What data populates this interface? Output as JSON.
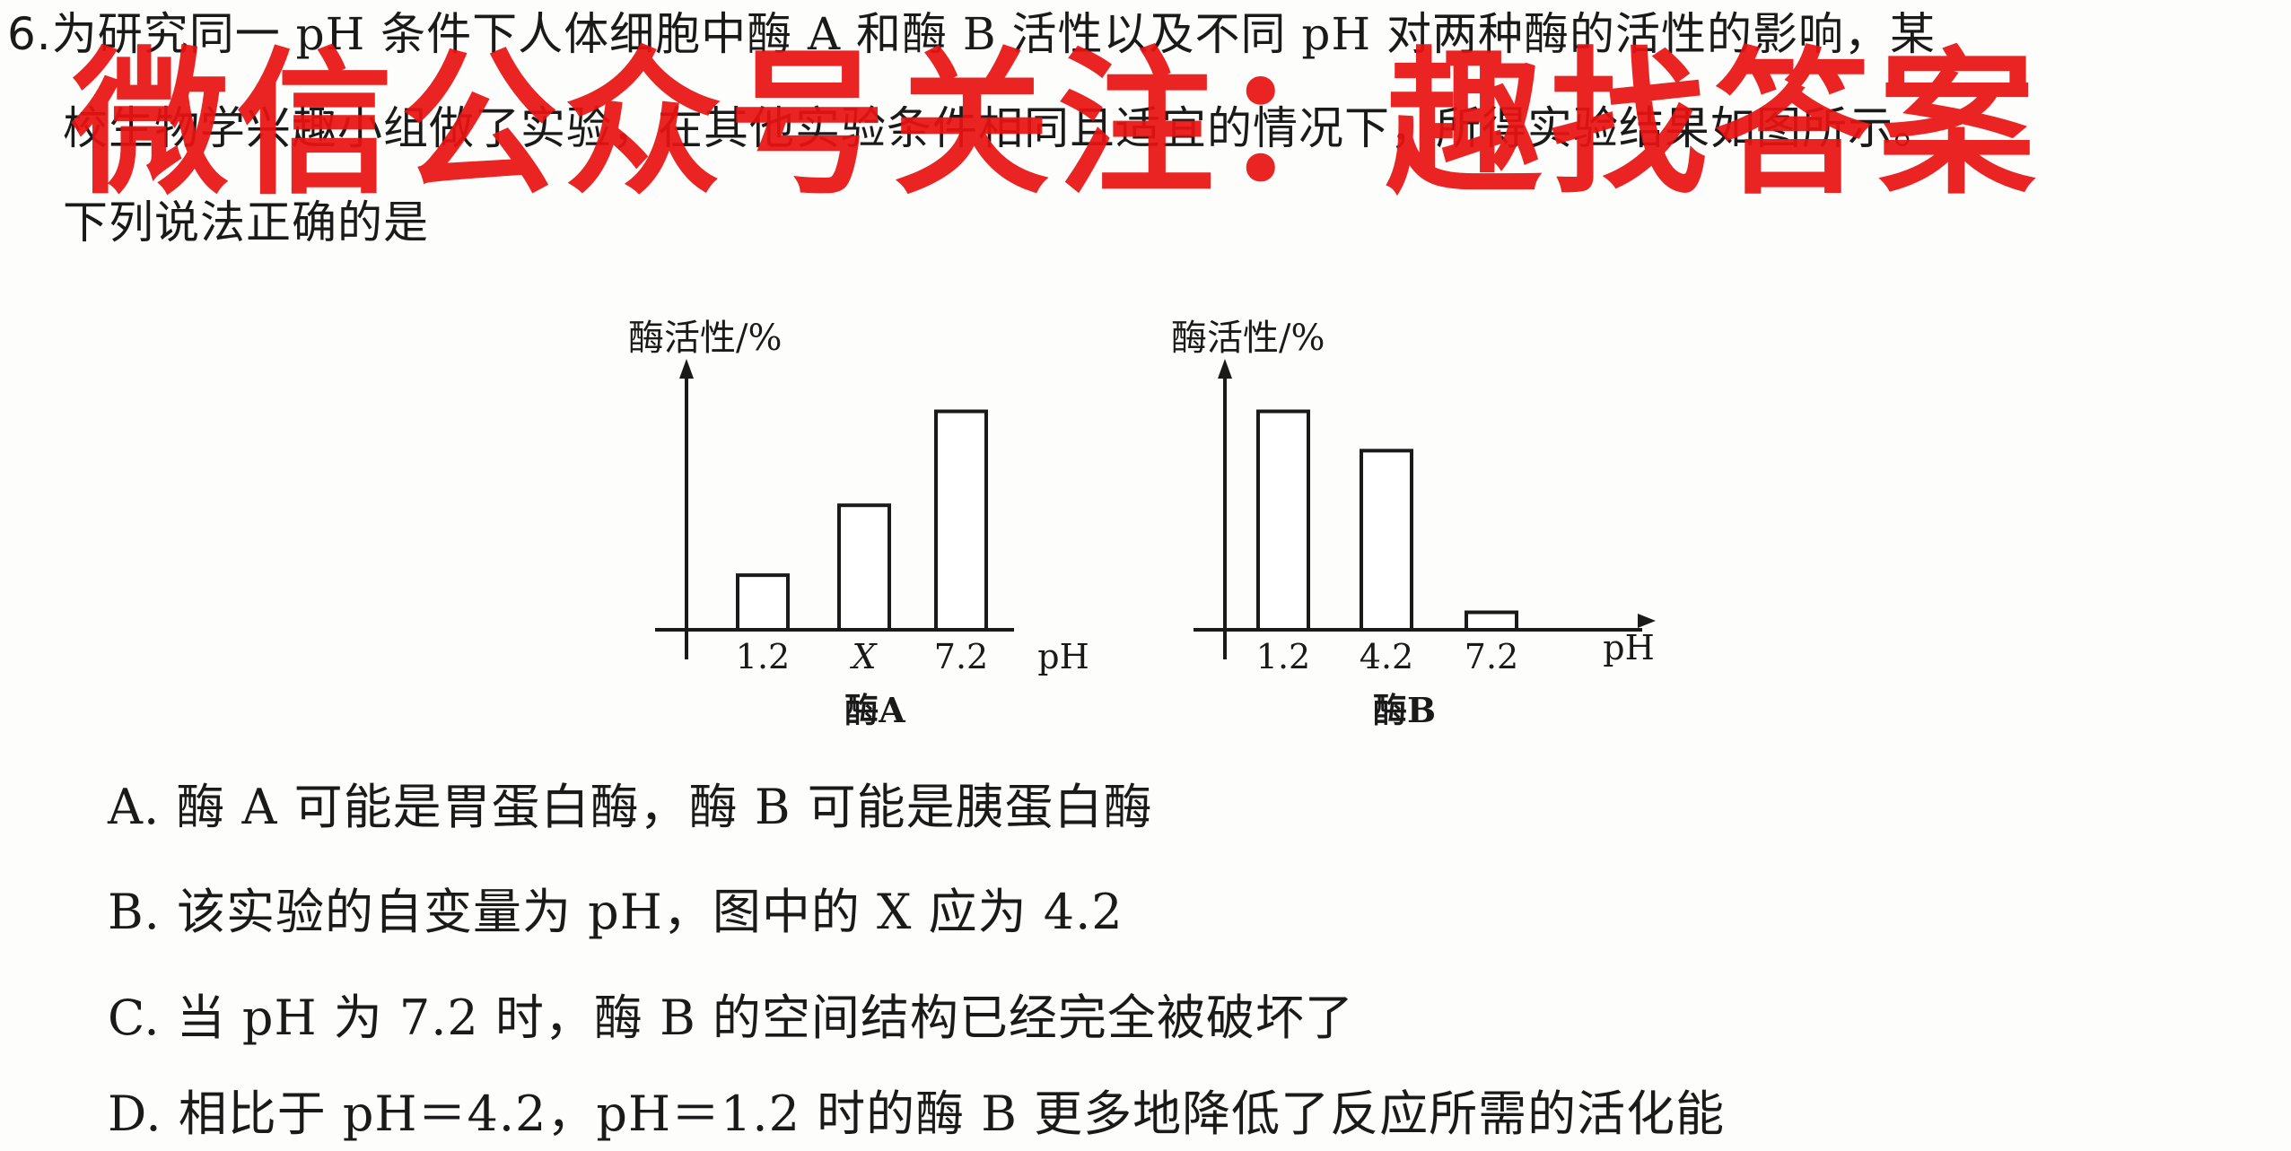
{
  "question": {
    "number": "6.",
    "stem_lines": [
      "为研究同一 pH 条件下人体细胞中酶 A 和酶 B 活性以及不同 pH 对两种酶的活性的影响，某",
      "校生物学兴趣小组做了实验，在其他实验条件相同且适宜的情况下，所得实验结果如图所示。",
      "下列说法正确的是"
    ]
  },
  "watermark": {
    "text": "微信公众号关注：趣找答案",
    "color": "#e81212"
  },
  "charts": [
    {
      "ylabel": "酶活性/%",
      "xlabel": "pH",
      "caption": "酶A"
    },
    {
      "ylabel": "酶活性/%",
      "xlabel": "pH",
      "caption": "酶B"
    }
  ],
  "chart_data": [
    {
      "type": "bar",
      "categories": [
        "1.2",
        "X",
        "7.2"
      ],
      "values": [
        25,
        57,
        100
      ],
      "ylabel": "酶活性/%",
      "xlabel": "pH",
      "caption": "酶A",
      "ylim": [
        0,
        115
      ],
      "grid": false
    },
    {
      "type": "bar",
      "categories": [
        "1.2",
        "4.2",
        "7.2"
      ],
      "values": [
        100,
        82,
        8
      ],
      "ylabel": "酶活性/%",
      "xlabel": "pH",
      "caption": "酶B",
      "ylim": [
        0,
        115
      ],
      "grid": false
    }
  ],
  "options": [
    "A. 酶 A 可能是胃蛋白酶，酶 B 可能是胰蛋白酶",
    "B. 该实验的自变量为 pH，图中的 X 应为 4.2",
    "C. 当 pH 为 7.2 时，酶 B 的空间结构已经完全被破坏了",
    "D. 相比于 pH＝4.2，pH＝1.2 时的酶 B 更多地降低了反应所需的活化能"
  ]
}
